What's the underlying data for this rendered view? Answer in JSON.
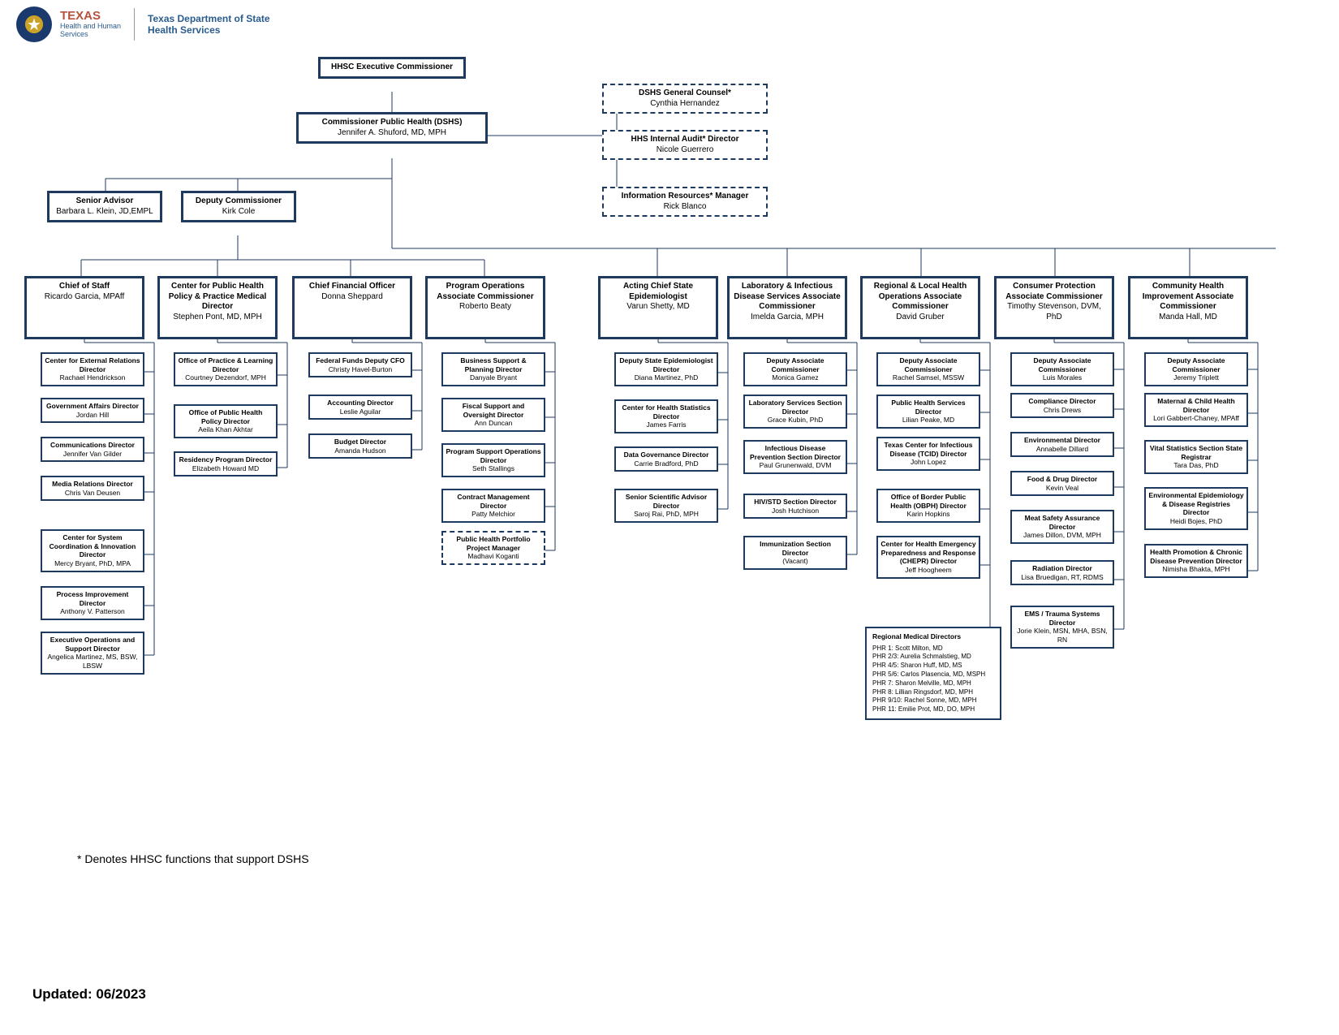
{
  "header": {
    "hhs_line1": "TEXAS",
    "hhs_line2a": "Health and Human",
    "hhs_line2b": "Services",
    "dshs_line1": "Texas Department of State",
    "dshs_line2": "Health Services"
  },
  "colors": {
    "border": "#1f3a5f",
    "background": "#ffffff",
    "hhs_red": "#b5533c",
    "hhs_blue": "#2a5c8f"
  },
  "footnote": "* Denotes HHSC functions that support DSHS",
  "updated": "Updated: 06/2023",
  "top": {
    "exec": {
      "title": "HHSC Executive Commissioner",
      "name": ""
    },
    "comm": {
      "title": "Commissioner Public Health (DSHS)",
      "name": "Jennifer A. Shuford, MD, MPH"
    },
    "gc": {
      "title": "DSHS General Counsel*",
      "name": "Cynthia Hernandez"
    },
    "audit": {
      "title": "HHS Internal Audit* Director",
      "name": "Nicole Guerrero"
    },
    "irm": {
      "title": "Information Resources* Manager",
      "name": "Rick Blanco"
    },
    "senior": {
      "title": "Senior Advisor",
      "name": "Barbara L. Klein, JD,EMPL"
    },
    "deputy": {
      "title": "Deputy Commissioner",
      "name": "Kirk Cole"
    }
  },
  "cols": [
    {
      "head": {
        "title": "Chief of Staff",
        "name": "Ricardo Garcia, MPAff"
      },
      "subs": [
        {
          "title": "Center for External Relations Director",
          "name": "Rachael Hendrickson"
        },
        {
          "title": "Government Affairs Director",
          "name": "Jordan Hill"
        },
        {
          "title": "Communications Director",
          "name": "Jennifer Van Gilder"
        },
        {
          "title": "Media Relations Director",
          "name": "Chris Van Deusen"
        },
        {
          "title": "Center for System Coordination & Innovation Director",
          "name": "Mercy Bryant, PhD, MPA"
        },
        {
          "title": "Process Improvement Director",
          "name": "Anthony V. Patterson"
        },
        {
          "title": "Executive Operations and Support Director",
          "name": "Angelica Martinez, MS, BSW, LBSW"
        }
      ]
    },
    {
      "head": {
        "title": "Center for Public Health Policy & Practice Medical Director",
        "name": "Stephen Pont, MD, MPH"
      },
      "subs": [
        {
          "title": "Office of Practice & Learning Director",
          "name": "Courtney Dezendorf, MPH"
        },
        {
          "title": "Office of Public Health Policy Director",
          "name": "Aeila Khan Akhtar"
        },
        {
          "title": "Residency Program Director",
          "name": "Elizabeth Howard MD"
        }
      ]
    },
    {
      "head": {
        "title": "Chief Financial Officer",
        "name": "Donna Sheppard"
      },
      "subs": [
        {
          "title": "Federal Funds Deputy CFO",
          "name": "Christy Havel-Burton"
        },
        {
          "title": "Accounting Director",
          "name": "Leslie Aguilar"
        },
        {
          "title": "Budget Director",
          "name": "Amanda Hudson"
        }
      ]
    },
    {
      "head": {
        "title": "Program Operations Associate Commissioner",
        "name": "Roberto Beaty"
      },
      "subs": [
        {
          "title": "Business Support & Planning Director",
          "name": "Danyale Bryant"
        },
        {
          "title": "Fiscal Support and Oversight Director",
          "name": "Ann Duncan"
        },
        {
          "title": "Program Support Operations Director",
          "name": "Seth Stallings"
        },
        {
          "title": "Contract Management Director",
          "name": "Patty Melchior"
        },
        {
          "title": "Public Health Portfolio Project Manager",
          "name": "Madhavi Koganti",
          "dashed": true
        }
      ]
    },
    {
      "head": {
        "title": "Acting Chief State Epidemiologist",
        "name": "Varun Shetty, MD"
      },
      "subs": [
        {
          "title": "Deputy State Epidemiologist Director",
          "name": "Diana Martinez, PhD"
        },
        {
          "title": "Center for Health Statistics Director",
          "name": "James Farris"
        },
        {
          "title": "Data Governance Director",
          "name": "Carrie Bradford, PhD"
        },
        {
          "title": "Senior Scientific Advisor Director",
          "name": "Saroj Rai, PhD, MPH"
        }
      ]
    },
    {
      "head": {
        "title": "Laboratory & Infectious Disease Services Associate Commissioner",
        "name": "Imelda Garcia, MPH"
      },
      "subs": [
        {
          "title": "Deputy Associate Commissioner",
          "name": "Monica Gamez"
        },
        {
          "title": "Laboratory Services Section Director",
          "name": "Grace Kubin, PhD"
        },
        {
          "title": "Infectious Disease Prevention Section Director",
          "name": "Paul Grunenwald, DVM"
        },
        {
          "title": "HIV/STD Section Director",
          "name": "Josh Hutchison"
        },
        {
          "title": "Immunization Section Director",
          "name": "(Vacant)"
        }
      ]
    },
    {
      "head": {
        "title": "Regional & Local Health Operations Associate Commissioner",
        "name": "David Gruber"
      },
      "subs": [
        {
          "title": "Deputy Associate Commissioner",
          "name": "Rachel Samsel, MSSW"
        },
        {
          "title": "Public Health Services Director",
          "name": "Lilian Peake, MD"
        },
        {
          "title": "Texas Center for Infectious Disease (TCID) Director",
          "name": "John Lopez"
        },
        {
          "title": "Office of Border Public Health (OBPH) Director",
          "name": "Karin Hopkins"
        },
        {
          "title": "Center for Health Emergency Preparedness and Response (CHEPR) Director",
          "name": "Jeff Hoogheem"
        }
      ],
      "rmd": {
        "title": "Regional Medical Directors",
        "lines": [
          "PHR 1:  Scott Milton, MD",
          "PHR 2/3:  Aurelia Schmalstieg, MD",
          "PHR 4/5:  Sharon Huff, MD, MS",
          "PHR 5/6:  Carlos Plasencia, MD, MSPH",
          "PHR 7:  Sharon Melville, MD, MPH",
          "PHR 8:  Lillian Ringsdorf, MD, MPH",
          "PHR 9/10:  Rachel Sonne, MD, MPH",
          "PHR 11:  Emilie Prot, MD, DO, MPH"
        ]
      }
    },
    {
      "head": {
        "title": "Consumer Protection Associate Commissioner",
        "name": "Timothy Stevenson, DVM, PhD"
      },
      "subs": [
        {
          "title": "Deputy Associate Commissioner",
          "name": "Luis Morales"
        },
        {
          "title": "Compliance Director",
          "name": "Chris Drews"
        },
        {
          "title": "Environmental Director",
          "name": "Annabelle Dillard"
        },
        {
          "title": "Food & Drug Director",
          "name": "Kevin Veal"
        },
        {
          "title": "Meat Safety Assurance Director",
          "name": "James Dillon, DVM, MPH"
        },
        {
          "title": "Radiation Director",
          "name": "Lisa Bruedigan, RT, RDMS"
        },
        {
          "title": "EMS / Trauma Systems Director",
          "name": "Jorie Klein, MSN, MHA, BSN, RN"
        }
      ]
    },
    {
      "head": {
        "title": "Community Health Improvement Associate Commissioner",
        "name": "Manda Hall, MD"
      },
      "subs": [
        {
          "title": "Deputy Associate Commissioner",
          "name": "Jeremy Triplett"
        },
        {
          "title": "Maternal & Child Health Director",
          "name": "Lori Gabbert-Chaney, MPAff"
        },
        {
          "title": "Vital Statistics Section State Registrar",
          "name": "Tara Das, PhD"
        },
        {
          "title": "Environmental Epidemiology & Disease Registries Director",
          "name": "Heidi Bojes, PhD"
        },
        {
          "title": "Health Promotion & Chronic Disease Prevention Director",
          "name": "Nimisha Bhakta, MPH"
        }
      ]
    }
  ]
}
